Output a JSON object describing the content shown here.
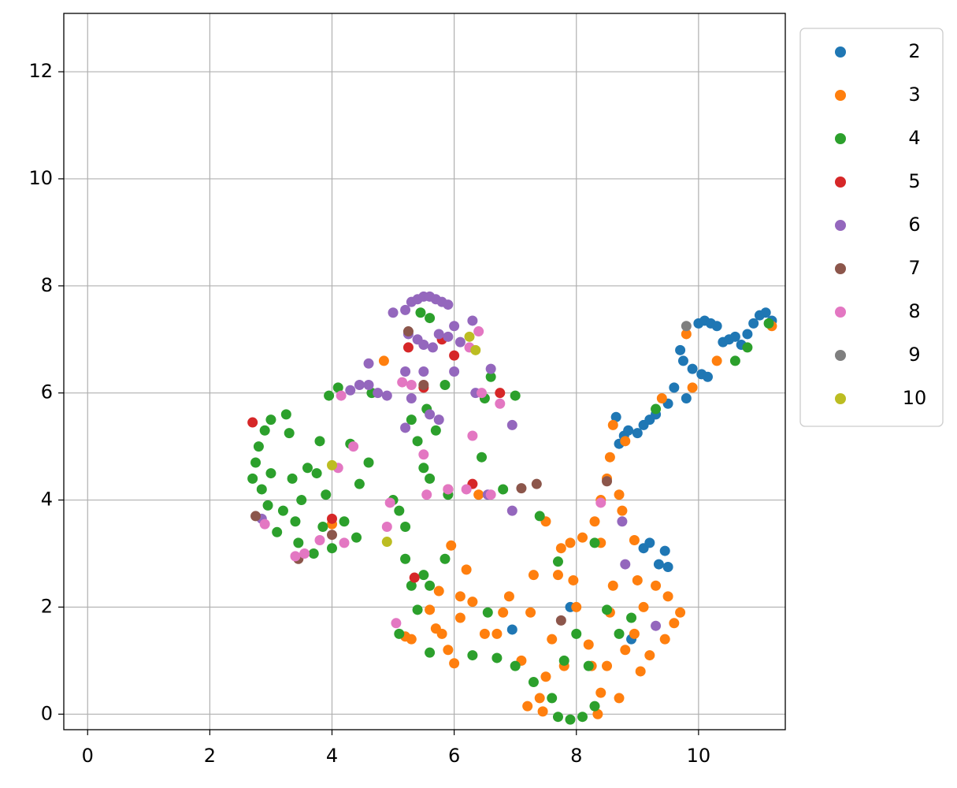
{
  "chart_data": {
    "type": "scatter",
    "xlim": [
      -0.39,
      11.42
    ],
    "ylim": [
      -0.29,
      13.09
    ],
    "xticks": [
      0,
      2,
      4,
      6,
      8,
      10
    ],
    "yticks": [
      0,
      2,
      4,
      6,
      8,
      10,
      12
    ],
    "grid": true,
    "legend": "outside upper right",
    "series": [
      {
        "name": "2",
        "color": "#1f77b4",
        "x": [
          8.65,
          8.7,
          8.78,
          8.85,
          9.0,
          9.1,
          9.2,
          9.3,
          9.5,
          9.6,
          9.7,
          9.75,
          9.8,
          9.9,
          10.0,
          10.05,
          10.1,
          10.15,
          10.2,
          10.3,
          10.4,
          10.5,
          10.6,
          10.7,
          10.8,
          10.9,
          11.0,
          11.1,
          11.2,
          9.1,
          9.2,
          9.35,
          9.45,
          9.5,
          6.95,
          7.9,
          8.9
        ],
        "values": [
          5.55,
          5.05,
          5.2,
          5.3,
          5.25,
          5.4,
          5.5,
          5.6,
          5.8,
          6.1,
          6.8,
          6.6,
          5.9,
          6.45,
          7.3,
          6.35,
          7.35,
          6.3,
          7.3,
          7.25,
          6.95,
          7.0,
          7.05,
          6.9,
          7.1,
          7.3,
          7.45,
          7.5,
          7.35,
          3.1,
          3.2,
          2.8,
          3.05,
          2.75,
          1.58,
          2.0,
          1.4
        ]
      },
      {
        "name": "3",
        "color": "#ff7f0e",
        "x": [
          5.3,
          5.6,
          5.7,
          5.8,
          5.9,
          6.0,
          6.1,
          5.75,
          6.1,
          6.3,
          6.5,
          6.8,
          6.9,
          7.1,
          7.25,
          7.3,
          7.4,
          7.2,
          7.45,
          7.5,
          7.6,
          7.7,
          7.75,
          7.9,
          8.1,
          7.95,
          8.0,
          8.2,
          8.25,
          8.35,
          8.4,
          8.5,
          8.55,
          8.6,
          8.7,
          8.8,
          8.95,
          9.0,
          9.1,
          9.2,
          9.3,
          9.45,
          9.6,
          9.7,
          9.5,
          8.95,
          8.4,
          8.3,
          8.4,
          8.5,
          8.55,
          8.6,
          8.7,
          8.75,
          8.8,
          9.4,
          9.8,
          9.9,
          10.3,
          11.2,
          6.7,
          7.8,
          9.05,
          4.0,
          4.85,
          5.2,
          6.2,
          7.5,
          6.4,
          5.95
        ],
        "values": [
          1.4,
          1.95,
          1.6,
          1.5,
          1.2,
          0.95,
          1.8,
          2.3,
          2.2,
          2.1,
          1.5,
          1.9,
          2.2,
          1.0,
          1.9,
          2.6,
          0.3,
          0.15,
          0.05,
          0.7,
          1.4,
          2.6,
          3.1,
          3.2,
          3.3,
          2.5,
          2.0,
          1.3,
          0.9,
          0.0,
          0.4,
          0.9,
          1.9,
          2.4,
          0.3,
          1.2,
          1.5,
          2.5,
          2.0,
          1.1,
          2.4,
          1.4,
          1.7,
          1.9,
          2.2,
          3.25,
          3.2,
          3.6,
          4.0,
          4.4,
          4.8,
          5.4,
          4.1,
          3.8,
          5.1,
          5.9,
          7.1,
          6.1,
          6.6,
          7.25,
          1.5,
          0.9,
          0.8,
          3.55,
          6.6,
          1.45,
          2.7,
          3.6,
          4.1,
          3.15
        ]
      },
      {
        "name": "4",
        "color": "#2ca02c",
        "x": [
          2.7,
          2.75,
          2.8,
          2.9,
          3.0,
          2.85,
          2.95,
          3.0,
          3.1,
          3.2,
          3.25,
          3.3,
          3.35,
          3.4,
          3.45,
          3.5,
          3.6,
          3.7,
          3.75,
          3.8,
          3.85,
          3.9,
          3.95,
          4.0,
          4.1,
          4.2,
          4.3,
          4.4,
          4.45,
          4.6,
          4.65,
          5.0,
          5.1,
          5.2,
          5.3,
          5.4,
          5.5,
          5.55,
          5.6,
          5.7,
          5.85,
          5.9,
          5.45,
          5.6,
          6.45,
          6.5,
          6.6,
          6.8,
          7.0,
          5.2,
          5.3,
          5.5,
          5.6,
          5.85,
          5.4,
          5.1,
          5.6,
          6.3,
          6.55,
          6.7,
          7.0,
          7.3,
          7.6,
          7.7,
          7.9,
          8.1,
          8.3,
          7.8,
          8.0,
          8.2,
          8.3,
          8.5,
          8.7,
          8.9,
          9.3,
          10.6,
          10.8,
          11.15,
          7.7,
          7.4
        ],
        "values": [
          4.4,
          4.7,
          5.0,
          5.3,
          5.5,
          4.2,
          3.9,
          4.5,
          3.4,
          3.8,
          5.6,
          5.25,
          4.4,
          3.6,
          3.2,
          4.0,
          4.6,
          3.0,
          4.5,
          5.1,
          3.5,
          4.1,
          5.95,
          3.1,
          6.1,
          3.6,
          5.05,
          3.3,
          4.3,
          4.7,
          6.0,
          4.0,
          3.8,
          3.5,
          5.5,
          5.1,
          4.6,
          5.7,
          4.4,
          5.3,
          6.15,
          4.1,
          7.5,
          7.4,
          4.8,
          5.9,
          6.3,
          4.2,
          5.95,
          2.9,
          2.4,
          2.6,
          2.4,
          2.9,
          1.95,
          1.5,
          1.15,
          1.1,
          1.9,
          1.05,
          0.9,
          0.6,
          0.3,
          -0.05,
          -0.1,
          -0.05,
          0.15,
          1.0,
          1.5,
          0.9,
          3.2,
          1.95,
          1.5,
          1.8,
          5.7,
          6.6,
          6.85,
          7.3,
          2.85,
          3.7
        ]
      },
      {
        "name": "5",
        "color": "#d62728",
        "x": [
          2.7,
          4.0,
          5.35,
          5.25,
          5.8,
          6.0,
          6.3,
          5.9,
          6.75,
          5.5
        ],
        "values": [
          5.45,
          3.65,
          2.55,
          6.85,
          7.0,
          6.7,
          4.3,
          4.2,
          6.0,
          6.1
        ]
      },
      {
        "name": "6",
        "color": "#9467bd",
        "x": [
          5.0,
          5.2,
          5.3,
          5.4,
          5.5,
          5.6,
          5.7,
          5.8,
          5.9,
          5.25,
          5.4,
          5.5,
          5.65,
          5.75,
          5.9,
          6.0,
          6.1,
          6.3,
          4.3,
          4.45,
          4.6,
          4.75,
          4.9,
          4.6,
          5.2,
          5.5,
          5.3,
          5.6,
          5.75,
          6.0,
          6.6,
          6.95,
          6.95,
          8.75,
          8.8,
          9.3,
          5.2,
          6.55,
          2.85,
          6.35
        ],
        "values": [
          7.5,
          7.55,
          7.7,
          7.75,
          7.8,
          7.8,
          7.75,
          7.7,
          7.65,
          7.1,
          7.0,
          6.9,
          6.85,
          7.1,
          7.05,
          7.25,
          6.95,
          7.35,
          6.05,
          6.15,
          6.15,
          6.0,
          5.95,
          6.55,
          6.4,
          6.4,
          5.9,
          5.6,
          5.5,
          6.4,
          6.45,
          5.4,
          3.8,
          3.6,
          2.8,
          1.65,
          5.35,
          4.1,
          3.65,
          6.0
        ]
      },
      {
        "name": "7",
        "color": "#8c564b",
        "x": [
          2.75,
          3.45,
          4.0,
          5.25,
          5.5,
          7.1,
          7.35,
          8.5,
          7.75
        ],
        "values": [
          3.7,
          2.9,
          3.35,
          7.15,
          6.15,
          4.22,
          4.3,
          4.35,
          1.75
        ]
      },
      {
        "name": "8",
        "color": "#e377c2",
        "x": [
          2.9,
          3.4,
          3.55,
          3.8,
          4.1,
          4.15,
          4.2,
          4.35,
          4.9,
          4.95,
          5.15,
          5.3,
          5.5,
          5.55,
          5.9,
          6.2,
          6.3,
          6.45,
          6.6,
          6.75,
          6.4,
          6.25,
          5.05,
          8.4
        ],
        "values": [
          3.55,
          2.95,
          3.0,
          3.25,
          4.6,
          5.95,
          3.2,
          5.0,
          3.5,
          3.95,
          6.2,
          6.15,
          4.85,
          4.1,
          4.2,
          4.2,
          5.2,
          6.0,
          4.1,
          5.8,
          7.15,
          6.85,
          1.7,
          3.95
        ]
      },
      {
        "name": "9",
        "color": "#7f7f7f",
        "x": [
          9.8
        ],
        "values": [
          7.25
        ]
      },
      {
        "name": "10",
        "color": "#bcbd22",
        "x": [
          6.25,
          6.35,
          4.0,
          4.9
        ],
        "values": [
          7.05,
          6.8,
          4.65,
          3.22
        ]
      }
    ]
  }
}
